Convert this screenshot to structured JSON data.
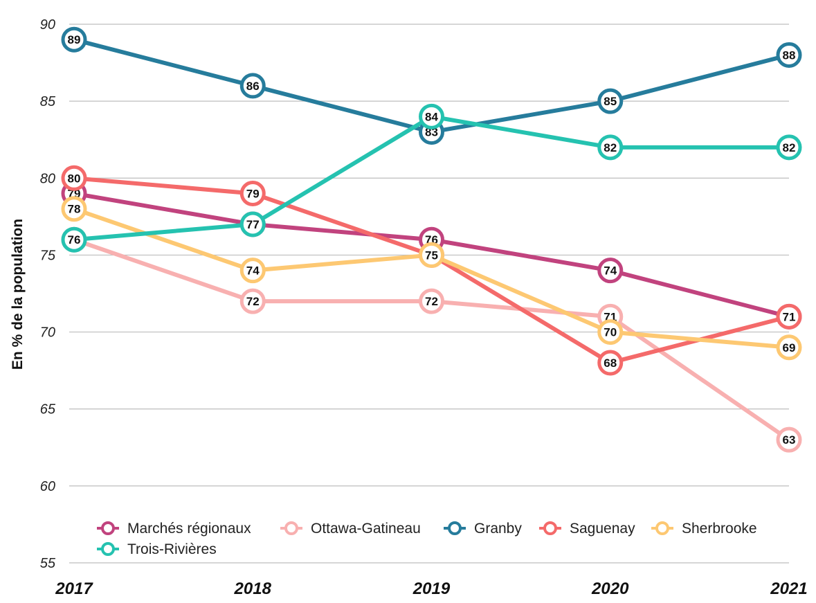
{
  "chart_data": {
    "type": "line",
    "title": "",
    "xlabel": "",
    "ylabel": "En % de la population",
    "ylim": [
      55,
      90
    ],
    "yticks": [
      55,
      60,
      65,
      70,
      75,
      80,
      85,
      90
    ],
    "x": [
      "2017",
      "2018",
      "2019",
      "2020",
      "2021"
    ],
    "grid": true,
    "legend_position": "bottom",
    "series": [
      {
        "name": "Marchés régionaux",
        "color": "#c1437e",
        "values": [
          79,
          77,
          76,
          74,
          71
        ]
      },
      {
        "name": "Ottawa-Gatineau",
        "color": "#f8b0b0",
        "values": [
          76,
          72,
          72,
          71,
          63
        ]
      },
      {
        "name": "Granby",
        "color": "#267c9c",
        "values": [
          89,
          86,
          83,
          85,
          88
        ]
      },
      {
        "name": "Saguenay",
        "color": "#f46a6a",
        "values": [
          80,
          79,
          75,
          68,
          71
        ]
      },
      {
        "name": "Sherbrooke",
        "color": "#fdc872",
        "values": [
          78,
          74,
          75,
          70,
          69
        ]
      },
      {
        "name": "Trois-Rivières",
        "color": "#25c2b0",
        "values": [
          76,
          77,
          84,
          82,
          82
        ]
      }
    ]
  }
}
